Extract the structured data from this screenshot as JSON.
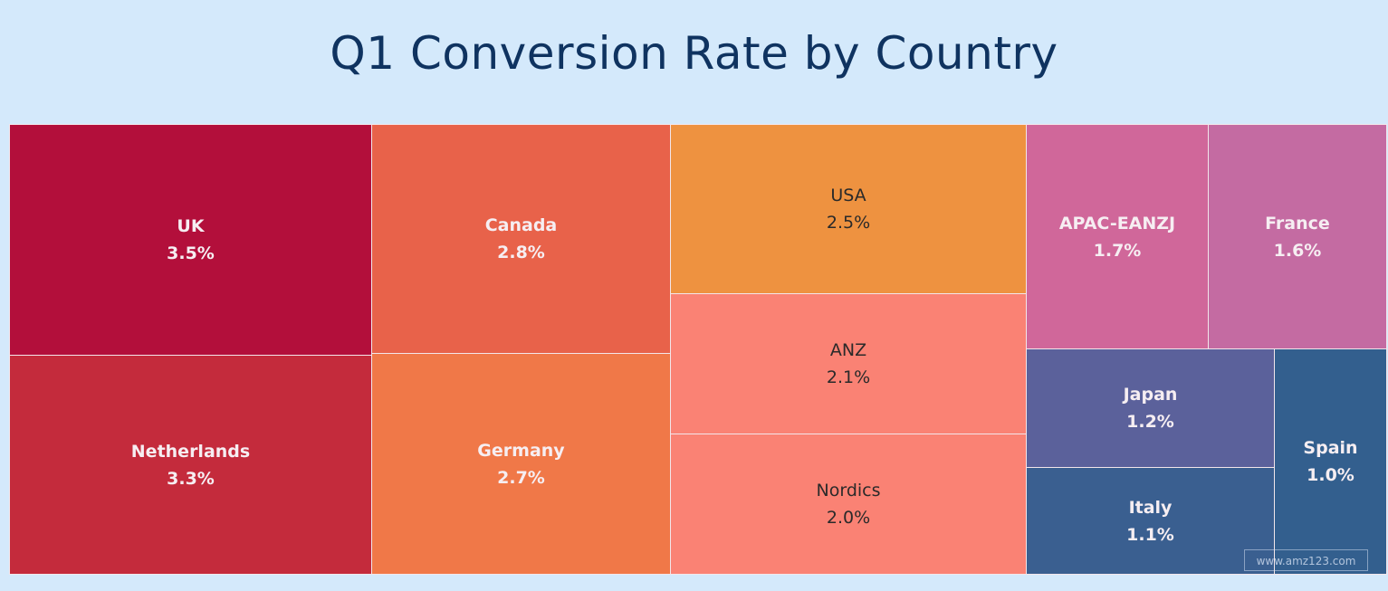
{
  "chart_data": {
    "type": "treemap",
    "title": "Q1 Conversion Rate by Country",
    "items": [
      {
        "label": "UK",
        "value": 3.5,
        "display": "3.5%",
        "color": "#b30f3b",
        "text": "light"
      },
      {
        "label": "Netherlands",
        "value": 3.3,
        "display": "3.3%",
        "color": "#c42b3c",
        "text": "light"
      },
      {
        "label": "Canada",
        "value": 2.8,
        "display": "2.8%",
        "color": "#e8624a",
        "text": "light"
      },
      {
        "label": "Germany",
        "value": 2.7,
        "display": "2.7%",
        "color": "#f07848",
        "text": "light"
      },
      {
        "label": "USA",
        "value": 2.5,
        "display": "2.5%",
        "color": "#ee9240",
        "text": "dark"
      },
      {
        "label": "ANZ",
        "value": 2.1,
        "display": "2.1%",
        "color": "#fa8274",
        "text": "dark"
      },
      {
        "label": "Nordics",
        "value": 2.0,
        "display": "2.0%",
        "color": "#fa8274",
        "text": "dark"
      },
      {
        "label": "APAC-EANZJ",
        "value": 1.7,
        "display": "1.7%",
        "color": "#d0679a",
        "text": "light"
      },
      {
        "label": "France",
        "value": 1.6,
        "display": "1.6%",
        "color": "#c46ba2",
        "text": "light"
      },
      {
        "label": "Japan",
        "value": 1.2,
        "display": "1.2%",
        "color": "#5b619b",
        "text": "light"
      },
      {
        "label": "Italy",
        "value": 1.1,
        "display": "1.1%",
        "color": "#3a5f90",
        "text": "light"
      },
      {
        "label": "Spain",
        "value": 1.0,
        "display": "1.0%",
        "color": "#335f8e",
        "text": "light"
      }
    ]
  },
  "watermark": "www.amz123.com",
  "background": "#d4e9fb"
}
